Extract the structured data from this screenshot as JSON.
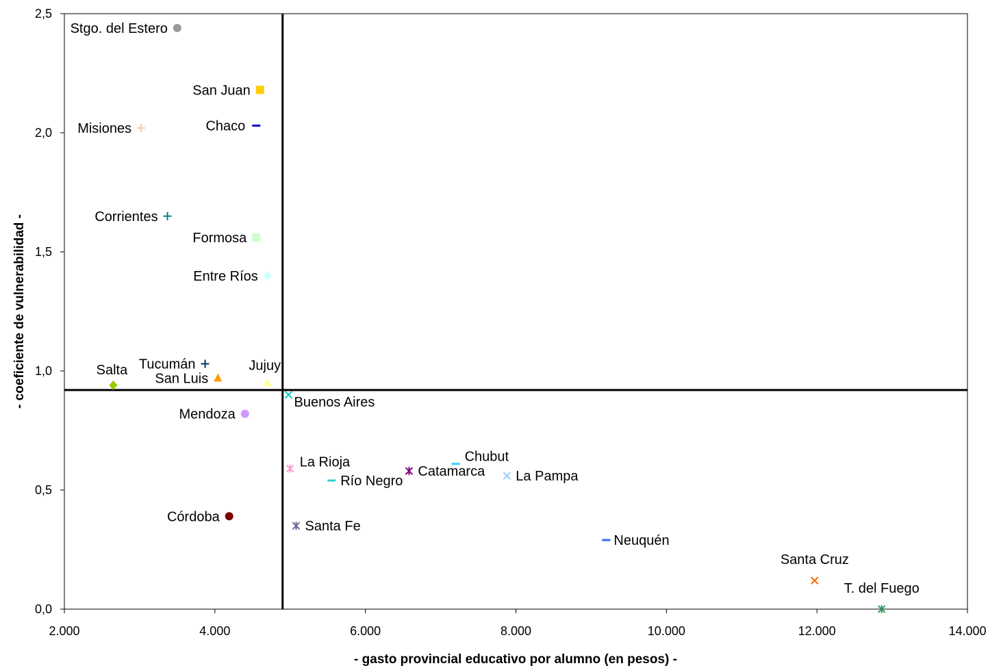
{
  "chart_data": {
    "type": "scatter",
    "title": "",
    "xlabel": "- gasto provincial educativo por alumno (en pesos) -",
    "ylabel": "- coeficiente de vulnerabilidad -",
    "xlim": [
      2000,
      14000
    ],
    "ylim": [
      0,
      2.5
    ],
    "x_ticks": [
      2000,
      4000,
      6000,
      8000,
      10000,
      12000,
      14000
    ],
    "x_tick_labels": [
      "2.000",
      "4.000",
      "6.000",
      "8.000",
      "10.000",
      "12.000",
      "14.000"
    ],
    "y_ticks": [
      0,
      0.5,
      1.0,
      1.5,
      2.0,
      2.5
    ],
    "y_tick_labels": [
      "0,0",
      "0,5",
      "1,0",
      "1,5",
      "2,0",
      "2,5"
    ],
    "grid": false,
    "legend": "none",
    "reference_lines": {
      "x": 4900,
      "y": 0.92
    },
    "points": [
      {
        "label": "Stgo. del Estero",
        "x": 3500,
        "y": 2.44,
        "marker": "circle",
        "color": "#999999"
      },
      {
        "label": "San Juan",
        "x": 4600,
        "y": 2.18,
        "marker": "square",
        "color": "#ffcc00"
      },
      {
        "label": "Chaco",
        "x": 4550,
        "y": 2.03,
        "marker": "dash",
        "color": "#0000cc"
      },
      {
        "label": "Misiones",
        "x": 3020,
        "y": 2.02,
        "marker": "plus",
        "color": "#ffcc99"
      },
      {
        "label": "Corrientes",
        "x": 3370,
        "y": 1.65,
        "marker": "plus",
        "color": "#008080"
      },
      {
        "label": "Formosa",
        "x": 4550,
        "y": 1.56,
        "marker": "square",
        "color": "#ccffcc"
      },
      {
        "label": "Entre Ríos",
        "x": 4700,
        "y": 1.4,
        "marker": "diamond",
        "color": "#ccffff"
      },
      {
        "label": "Tucumán",
        "x": 3870,
        "y": 1.03,
        "marker": "plus",
        "color": "#003366"
      },
      {
        "label": "Jujuy",
        "x": 4700,
        "y": 0.95,
        "marker": "triangle",
        "color": "#ffff99"
      },
      {
        "label": "San Luis",
        "x": 4040,
        "y": 0.97,
        "marker": "triangle",
        "color": "#ff9900"
      },
      {
        "label": "Salta",
        "x": 2650,
        "y": 0.94,
        "marker": "diamond",
        "color": "#99cc00"
      },
      {
        "label": "Buenos Aires",
        "x": 4980,
        "y": 0.9,
        "marker": "x",
        "color": "#00cccc"
      },
      {
        "label": "Mendoza",
        "x": 4400,
        "y": 0.82,
        "marker": "circle",
        "color": "#cc99ff"
      },
      {
        "label": "Chubut",
        "x": 7200,
        "y": 0.61,
        "marker": "dash",
        "color": "#33ccff"
      },
      {
        "label": "La Rioja",
        "x": 5000,
        "y": 0.59,
        "marker": "asterisk",
        "color": "#ff99cc"
      },
      {
        "label": "Catamarca",
        "x": 6580,
        "y": 0.58,
        "marker": "asterisk",
        "color": "#800080"
      },
      {
        "label": "La Pampa",
        "x": 7880,
        "y": 0.56,
        "marker": "x",
        "color": "#99ccff"
      },
      {
        "label": "Río Negro",
        "x": 5550,
        "y": 0.54,
        "marker": "dash",
        "color": "#33cccc"
      },
      {
        "label": "Córdoba",
        "x": 4190,
        "y": 0.39,
        "marker": "circle",
        "color": "#800000"
      },
      {
        "label": "Santa Fe",
        "x": 5080,
        "y": 0.35,
        "marker": "asterisk",
        "color": "#666699"
      },
      {
        "label": "Neuquén",
        "x": 9200,
        "y": 0.29,
        "marker": "dash",
        "color": "#3366ff"
      },
      {
        "label": "Santa Cruz",
        "x": 11970,
        "y": 0.12,
        "marker": "x",
        "color": "#ff6600"
      },
      {
        "label": "T. del Fuego",
        "x": 12860,
        "y": 0.0,
        "marker": "asterisk",
        "color": "#339966"
      }
    ]
  }
}
